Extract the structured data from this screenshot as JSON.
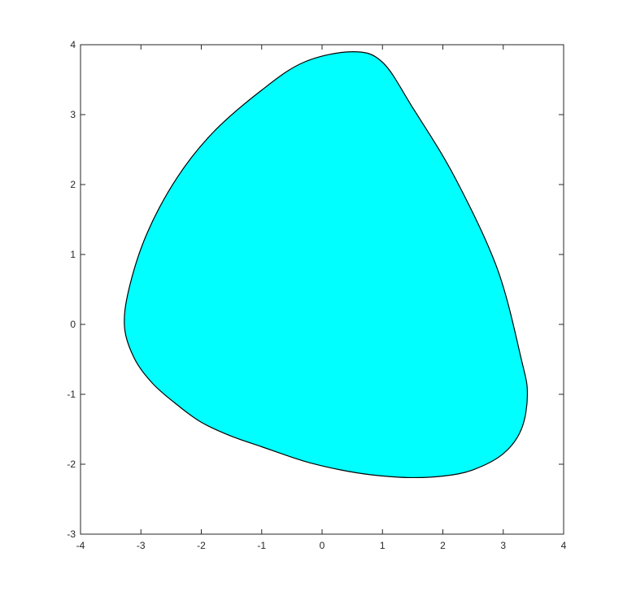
{
  "chart_data": {
    "type": "area",
    "title": "",
    "xlabel": "",
    "ylabel": "",
    "xlim": [
      -4,
      4
    ],
    "ylim": [
      -3,
      4
    ],
    "xticks": [
      "-4",
      "-3",
      "-2",
      "-1",
      "0",
      "1",
      "2",
      "3",
      "4"
    ],
    "yticks": [
      "-3",
      "-2",
      "-1",
      "0",
      "1",
      "2",
      "3",
      "4"
    ],
    "grid": false,
    "fill_color": "#00FFFF",
    "edge_color": "#000000",
    "series": [
      {
        "x": [
          -3.27,
          -3.2,
          -2.9,
          -2.4,
          -1.8,
          -1.0,
          -0.3,
          0.5,
          1.0,
          1.5,
          2.2,
          2.9,
          3.3,
          3.4,
          3.3,
          3.0,
          2.5,
          2.0,
          1.4,
          0.8,
          0.3,
          -0.2,
          -0.5,
          -1.0,
          -1.5,
          -2.0,
          -2.4,
          -2.8,
          -3.1,
          -3.27
        ],
        "y": [
          -0.05,
          0.5,
          1.3,
          2.1,
          2.75,
          3.35,
          3.75,
          3.9,
          3.75,
          3.1,
          2.1,
          0.8,
          -0.5,
          -1.0,
          -1.5,
          -1.85,
          -2.08,
          -2.17,
          -2.19,
          -2.15,
          -2.08,
          -1.98,
          -1.9,
          -1.75,
          -1.6,
          -1.4,
          -1.15,
          -0.85,
          -0.5,
          -0.05
        ]
      }
    ]
  }
}
